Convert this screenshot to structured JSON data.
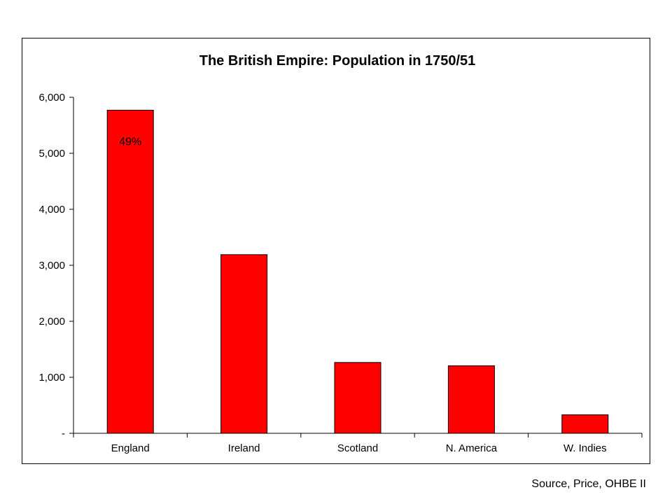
{
  "chart_data": {
    "type": "bar",
    "title": "The British Empire: Population in 1750/51",
    "categories": [
      "England",
      "Ireland",
      "Scotland",
      "N. America",
      "W. Indies"
    ],
    "values": [
      5770,
      3190,
      1265,
      1205,
      330
    ],
    "ylim": [
      0,
      6000
    ],
    "yticks": [
      0,
      1000,
      2000,
      3000,
      4000,
      5000,
      6000
    ],
    "ytick_labels": [
      "-",
      "1,000",
      "2,000",
      "3,000",
      "4,000",
      "5,000",
      "6,000"
    ],
    "data_labels": [
      {
        "category": "England",
        "text": "49%"
      }
    ],
    "bar_color": "#ff0000",
    "grid": false,
    "legend": "none"
  },
  "source": "Source, Price, OHBE II"
}
